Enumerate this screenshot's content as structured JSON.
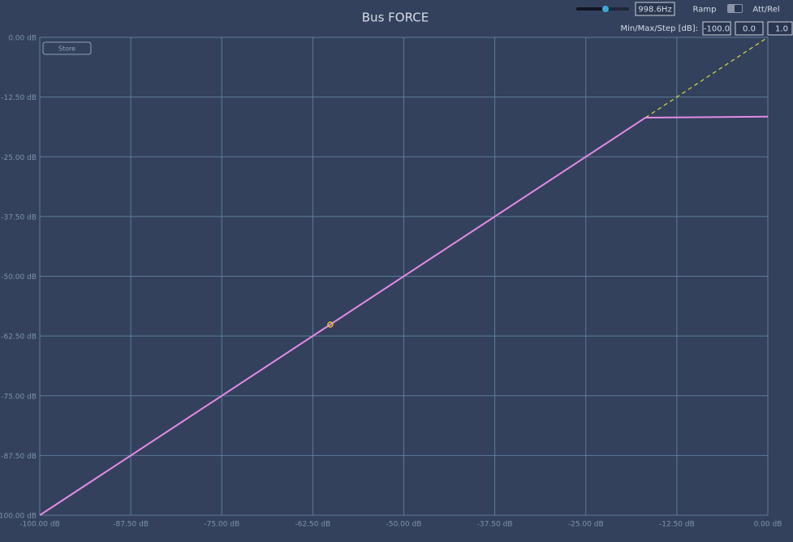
{
  "chart_data": {
    "type": "line",
    "title": "Bus FORCE",
    "xlim": [
      -100,
      0
    ],
    "ylim": [
      -100,
      0
    ],
    "xticks": [
      {
        "value": -100,
        "label": "-100.00 dB"
      },
      {
        "value": -87.5,
        "label": "-87.50 dB"
      },
      {
        "value": -75,
        "label": "-75.00 dB"
      },
      {
        "value": -62.5,
        "label": "-62.50 dB"
      },
      {
        "value": -50,
        "label": "-50.00 dB"
      },
      {
        "value": -37.5,
        "label": "-37.50 dB"
      },
      {
        "value": -25,
        "label": "-25.00 dB"
      },
      {
        "value": -12.5,
        "label": "-12.50 dB"
      },
      {
        "value": 0,
        "label": "0.00 dB"
      }
    ],
    "yticks": [
      {
        "value": 0,
        "label": "0.00 dB"
      },
      {
        "value": -12.5,
        "label": "-12.50 dB"
      },
      {
        "value": -25,
        "label": "-25.00 dB"
      },
      {
        "value": -37.5,
        "label": "-37.50 dB"
      },
      {
        "value": -50,
        "label": "-50.00 dB"
      },
      {
        "value": -62.5,
        "label": "-62.50 dB"
      },
      {
        "value": -75,
        "label": "-75.00 dB"
      },
      {
        "value": -87.5,
        "label": "-87.50 dB"
      },
      {
        "value": -100,
        "label": "-100.00 dB"
      }
    ],
    "grid": true,
    "series": [
      {
        "color": "#e58ae8",
        "dash": false,
        "x": [
          -100,
          -16.8,
          0
        ],
        "values": [
          -100,
          -16.8,
          -16.6
        ]
      },
      {
        "color": "#d8d840",
        "dash": true,
        "x": [
          -16.8,
          0
        ],
        "values": [
          -16.8,
          0
        ]
      }
    ],
    "marker": {
      "x": -60.1,
      "y": -60.1,
      "color": "#e8c030"
    }
  },
  "controls": {
    "store": "Store",
    "frequency": "998.6Hz",
    "ramp": "Ramp",
    "att_rel": "Att/Rel",
    "min_max_step_label": "Min/Max/Step [dB]:",
    "min": "-100.0",
    "max": "0.0",
    "step": "1.0"
  }
}
